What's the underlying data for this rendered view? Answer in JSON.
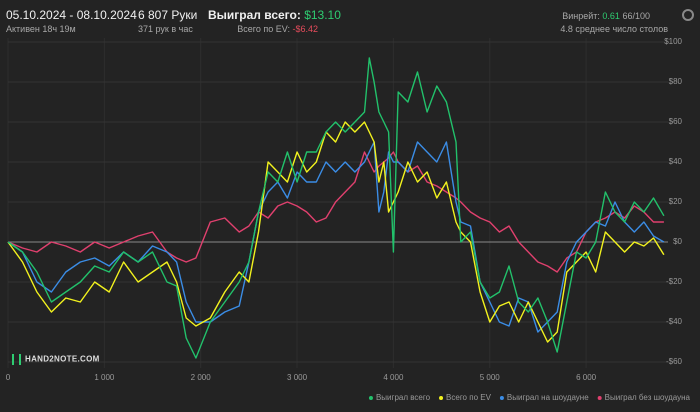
{
  "header": {
    "date_range": "05.10.2024 - 08.10.2024",
    "active": "Активен 18ч 19м",
    "hands": "6 807 Руки",
    "hands_per_hour": "371 рук в час",
    "won_label": "Выиграл всего:",
    "won_value": "$13.10",
    "ev_label": "Всего по EV:",
    "ev_value": "-$6.42",
    "winrate_label": "Винрейт:",
    "winrate_value": "0.61",
    "winrate_detail": "66/100",
    "avg_tables": "4.8 среднее число столов",
    "logo": "HAND2NOTE.COM"
  },
  "chart_data": {
    "type": "line",
    "x": [
      0,
      150,
      300,
      450,
      600,
      750,
      900,
      1050,
      1200,
      1350,
      1500,
      1650,
      1750,
      1850,
      1950,
      2100,
      2250,
      2400,
      2500,
      2600,
      2700,
      2800,
      2900,
      3000,
      3100,
      3200,
      3300,
      3400,
      3500,
      3600,
      3700,
      3750,
      3800,
      3850,
      3900,
      3950,
      4000,
      4050,
      4150,
      4250,
      4350,
      4450,
      4550,
      4650,
      4700,
      4800,
      4900,
      5000,
      5100,
      5200,
      5300,
      5400,
      5500,
      5600,
      5700,
      5800,
      5900,
      6000,
      6100,
      6200,
      6300,
      6400,
      6500,
      6600,
      6700,
      6807
    ],
    "series": [
      {
        "name": "Выиграл всего",
        "color": "#22c16b",
        "values": [
          0,
          -5,
          -15,
          -30,
          -25,
          -20,
          -12,
          -15,
          -5,
          -10,
          -5,
          -20,
          -22,
          -48,
          -58,
          -40,
          -30,
          -20,
          -10,
          15,
          35,
          30,
          45,
          30,
          45,
          45,
          55,
          60,
          55,
          60,
          65,
          92,
          80,
          65,
          60,
          55,
          -5,
          75,
          70,
          85,
          65,
          78,
          70,
          50,
          0,
          5,
          -20,
          -28,
          -25,
          -12,
          -30,
          -35,
          -28,
          -40,
          -55,
          -30,
          -5,
          -8,
          0,
          25,
          15,
          10,
          20,
          15,
          22,
          13.1
        ]
      },
      {
        "name": "Всего по EV",
        "color": "#f2f21e",
        "values": [
          0,
          -10,
          -25,
          -35,
          -28,
          -30,
          -20,
          -25,
          -10,
          -20,
          -15,
          -10,
          -20,
          -38,
          -42,
          -38,
          -25,
          -15,
          -20,
          5,
          40,
          35,
          30,
          45,
          35,
          40,
          55,
          50,
          60,
          55,
          60,
          55,
          50,
          30,
          40,
          15,
          20,
          25,
          40,
          30,
          35,
          22,
          30,
          10,
          5,
          0,
          -25,
          -40,
          -32,
          -30,
          -40,
          -30,
          -40,
          -50,
          -45,
          -15,
          -10,
          -5,
          -15,
          5,
          0,
          -5,
          0,
          -2,
          2,
          -6.42
        ]
      },
      {
        "name": "Выиграл на шоудауне",
        "color": "#3b8de6",
        "values": [
          0,
          -5,
          -20,
          -25,
          -15,
          -10,
          -8,
          -12,
          -5,
          -10,
          -2,
          -5,
          -10,
          -30,
          -40,
          -40,
          -35,
          -32,
          -10,
          15,
          25,
          30,
          22,
          35,
          30,
          30,
          40,
          35,
          40,
          35,
          40,
          45,
          50,
          15,
          25,
          45,
          40,
          40,
          35,
          50,
          45,
          40,
          50,
          20,
          10,
          8,
          -20,
          -30,
          -40,
          -42,
          -28,
          -30,
          -45,
          -40,
          -35,
          -10,
          0,
          5,
          10,
          8,
          20,
          10,
          5,
          10,
          3,
          0
        ]
      },
      {
        "name": "Выиграл без шоудауна",
        "color": "#e0406e",
        "values": [
          0,
          -3,
          -5,
          0,
          -2,
          -5,
          0,
          -3,
          0,
          3,
          5,
          -5,
          -8,
          -10,
          -8,
          10,
          12,
          5,
          8,
          15,
          12,
          18,
          20,
          18,
          15,
          10,
          12,
          20,
          25,
          30,
          45,
          40,
          35,
          38,
          40,
          42,
          45,
          40,
          35,
          38,
          30,
          28,
          25,
          22,
          20,
          15,
          12,
          10,
          5,
          8,
          0,
          -5,
          -10,
          -12,
          -15,
          -8,
          -5,
          5,
          10,
          12,
          15,
          12,
          18,
          15,
          10,
          10
        ]
      }
    ],
    "xlim": [
      0,
      6850
    ],
    "ylim": [
      -63,
      102
    ],
    "xticks": [
      0,
      {
        "value": 1000,
        "label": "1 000"
      },
      {
        "value": 2000,
        "label": "2 000"
      },
      {
        "value": 3000,
        "label": "3 000"
      },
      {
        "value": 4000,
        "label": "4 000"
      },
      {
        "value": 5000,
        "label": "5 000"
      },
      {
        "value": 6000,
        "label": "6 000"
      }
    ],
    "yticks": [
      {
        "value": -60,
        "label": "-$60"
      },
      {
        "value": -40,
        "label": "-$40"
      },
      {
        "value": -20,
        "label": "-$20"
      },
      {
        "value": 0,
        "label": "$0"
      },
      {
        "value": 20,
        "label": "$20"
      },
      {
        "value": 40,
        "label": "$40"
      },
      {
        "value": 60,
        "label": "$60"
      },
      {
        "value": 80,
        "label": "$80"
      },
      {
        "value": 100,
        "label": "$100"
      }
    ],
    "grid": true
  }
}
